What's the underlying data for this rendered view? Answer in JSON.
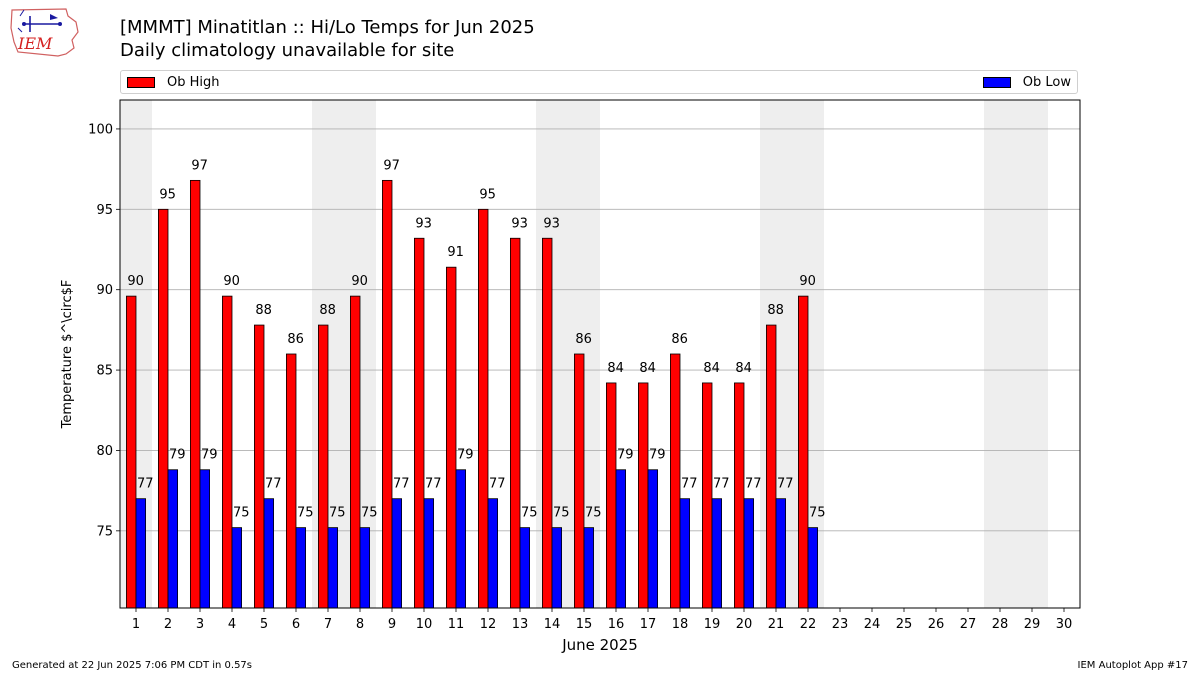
{
  "header": {
    "title": "[MMMT] Minatitlan :: Hi/Lo Temps for Jun 2025",
    "subtitle": "Daily climatology unavailable for site"
  },
  "logo": {
    "text": "IEM",
    "icon": "iem-iowa-logo"
  },
  "legend": {
    "high_label": "Ob High",
    "low_label": "Ob Low"
  },
  "footer": {
    "generated": "Generated at 22 Jun 2025 7:06 PM CDT in 0.57s",
    "app": "IEM Autoplot App #17"
  },
  "colors": {
    "high": "#ff0000",
    "low": "#0000ff",
    "weekend_band": "#eeeeee",
    "grid": "#b0b0b0"
  },
  "chart_data": {
    "type": "bar",
    "title": "[MMMT] Minatitlan :: Hi/Lo Temps for Jun 2025",
    "subtitle": "Daily climatology unavailable for site",
    "xlabel": "June 2025",
    "ylabel": "Temperature $^\\circ$F",
    "categories": [
      "1",
      "2",
      "3",
      "4",
      "5",
      "6",
      "7",
      "8",
      "9",
      "10",
      "11",
      "12",
      "13",
      "14",
      "15",
      "16",
      "17",
      "18",
      "19",
      "20",
      "21",
      "22",
      "23",
      "24",
      "25",
      "26",
      "27",
      "28",
      "29",
      "30"
    ],
    "series": [
      {
        "name": "Ob High",
        "color": "#ff0000",
        "values": [
          90,
          95,
          97,
          90,
          88,
          86,
          88,
          90,
          97,
          93,
          91,
          95,
          93,
          93,
          86,
          84,
          84,
          86,
          84,
          84,
          88,
          90,
          null,
          null,
          null,
          null,
          null,
          null,
          null,
          null
        ],
        "plotted_values": [
          89.6,
          95.0,
          96.8,
          89.6,
          87.8,
          86.0,
          87.8,
          89.6,
          96.8,
          93.2,
          91.4,
          95.0,
          93.2,
          93.2,
          86.0,
          84.2,
          84.2,
          86.0,
          84.2,
          84.2,
          87.8,
          89.6,
          null,
          null,
          null,
          null,
          null,
          null,
          null,
          null
        ]
      },
      {
        "name": "Ob Low",
        "color": "#0000ff",
        "values": [
          77,
          79,
          79,
          75,
          77,
          75,
          75,
          75,
          77,
          77,
          79,
          77,
          75,
          75,
          75,
          79,
          79,
          77,
          77,
          77,
          77,
          75,
          null,
          null,
          null,
          null,
          null,
          null,
          null,
          null
        ],
        "plotted_values": [
          77.0,
          78.8,
          78.8,
          75.2,
          77.0,
          75.2,
          75.2,
          75.2,
          77.0,
          77.0,
          78.8,
          77.0,
          75.2,
          75.2,
          75.2,
          78.8,
          78.8,
          77.0,
          77.0,
          77.0,
          77.0,
          75.2,
          null,
          null,
          null,
          null,
          null,
          null,
          null,
          null
        ]
      }
    ],
    "weekend_days": [
      1,
      7,
      8,
      14,
      15,
      21,
      22,
      28,
      29
    ],
    "ylim": [
      70.2,
      101.8
    ],
    "yticks": [
      75,
      80,
      85,
      90,
      95,
      100
    ],
    "grid": "y",
    "legend_placement": "top"
  }
}
